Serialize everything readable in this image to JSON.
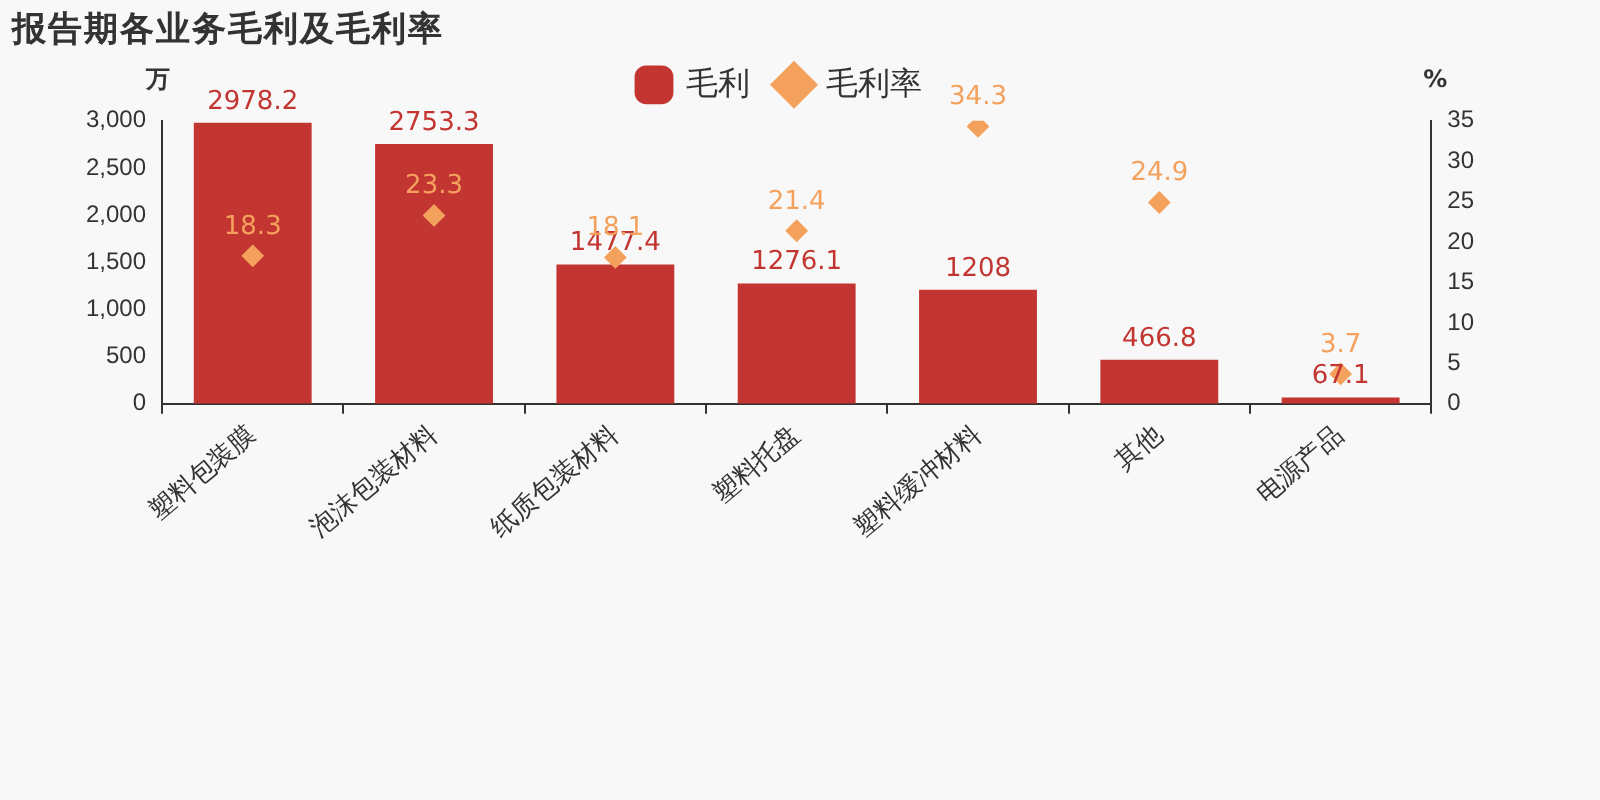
{
  "chart_data": {
    "type": "bar",
    "title": "报告期各业务毛利及毛利率",
    "ylabel": "万",
    "y2label": "%",
    "legend": "top",
    "data_labels": true,
    "categories": [
      "塑料包装膜",
      "泡沫包装材料",
      "纸质包装材料",
      "塑料托盘",
      "塑料缓冲材料",
      "其他",
      "电源产品"
    ],
    "series": [
      {
        "name": "毛利",
        "color": "#c23531",
        "values": [
          2978.2,
          2753.3,
          1477.4,
          1276.1,
          1208,
          466.8,
          67.1
        ]
      },
      {
        "name": "毛利率",
        "type": "scatter",
        "axis": "y2",
        "marker": "diamond",
        "color": "#f4a15d",
        "x": [
          "塑料包装膜",
          "泡沫包装材料",
          "纸质包装材料",
          "塑料托盘",
          "塑料缓冲材料",
          "其他",
          "电源产品"
        ],
        "values": [
          18.3,
          23.3,
          18.1,
          21.4,
          34.3,
          24.9,
          3.7
        ]
      }
    ],
    "ylim": [
      0,
      3000
    ],
    "yticks": [
      0,
      {
        "value": 500,
        "label": "500"
      },
      {
        "value": 1000,
        "label": "1,000"
      },
      {
        "value": 1500,
        "label": "1,500"
      },
      {
        "value": 2000,
        "label": "2,000"
      },
      {
        "value": 2500,
        "label": "2,500"
      },
      {
        "value": 3000,
        "label": "3,000"
      }
    ],
    "y2lim": [
      0,
      35
    ],
    "y2ticks": [
      0,
      5,
      10,
      15,
      20,
      25,
      30,
      35
    ]
  }
}
